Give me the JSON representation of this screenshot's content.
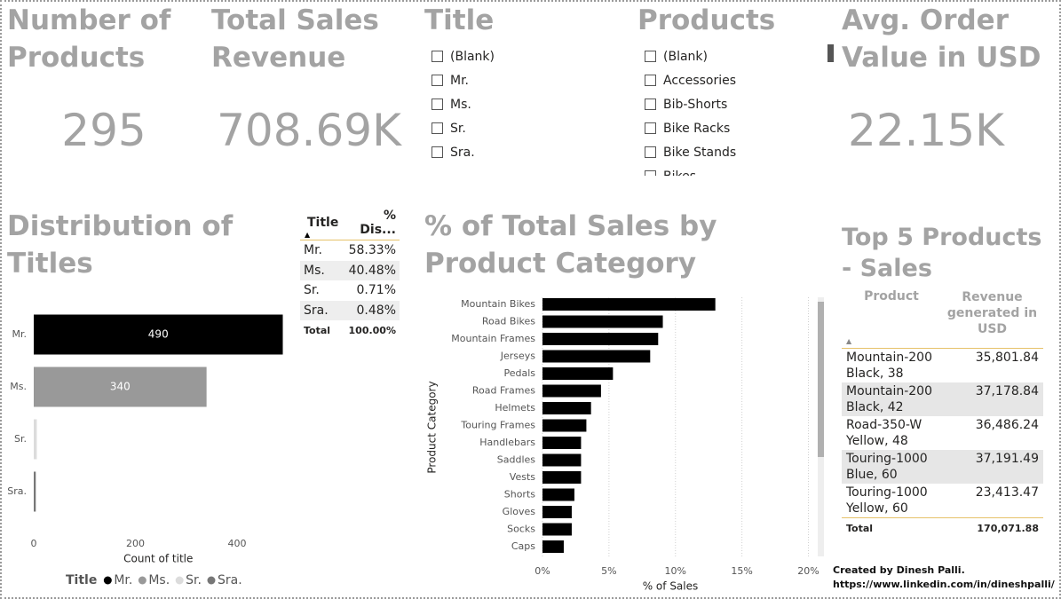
{
  "cards": [
    {
      "title": "Number of Products",
      "value": "295"
    },
    {
      "title": "Total Sales Revenue",
      "value": "708.69K"
    },
    {
      "title": "Avg. Order Value in USD",
      "value": "22.15K"
    }
  ],
  "slicers": [
    {
      "title": "Title",
      "items": [
        "(Blank)",
        "Mr.",
        "Ms.",
        "Sr.",
        "Sra."
      ]
    },
    {
      "title": "Products",
      "items": [
        "(Blank)",
        "Accessories",
        "Bib-Shorts",
        "Bike Racks",
        "Bike Stands",
        "Bikes"
      ]
    }
  ],
  "title_table": {
    "header": [
      "Title",
      "% Dis..."
    ],
    "rows": [
      [
        "Mr.",
        "58.33%"
      ],
      [
        "Ms.",
        "40.48%"
      ],
      [
        "Sr.",
        "0.71%"
      ],
      [
        "Sra.",
        "0.48%"
      ]
    ],
    "total": [
      "Total",
      "100.00%"
    ]
  },
  "top5": {
    "title": "Top 5 Products - Sales",
    "header": [
      "Product",
      "Revenue generated in USD"
    ],
    "rows": [
      [
        "Mountain-200 Black, 38",
        "35,801.84"
      ],
      [
        "Mountain-200 Black, 42",
        "37,178.84"
      ],
      [
        "Road-350-W Yellow, 48",
        "36,486.24"
      ],
      [
        "Touring-1000 Blue, 60",
        "37,191.49"
      ],
      [
        "Touring-1000 Yellow, 60",
        "23,413.47"
      ]
    ],
    "total": [
      "Total",
      "170,071.88"
    ]
  },
  "credit": [
    "Created by Dinesh Palli.",
    "https://www.linkedin.com/in/dineshpalli/"
  ],
  "chart_data": [
    {
      "type": "bar",
      "orientation": "horizontal",
      "title": "Distribution of Titles",
      "categories": [
        "Mr.",
        "Ms.",
        "Sr.",
        "Sra."
      ],
      "values": [
        490,
        340,
        6,
        4
      ],
      "colors": [
        "#000000",
        "#999999",
        "#dcdcdc",
        "#777777"
      ],
      "xlabel": "Count of title",
      "xlim": [
        0,
        490
      ],
      "xticks": [
        0,
        200,
        400
      ],
      "grid": false,
      "legend_title": "Title",
      "legend": "bottom-left"
    },
    {
      "type": "bar",
      "orientation": "horizontal",
      "title": "% of Total Sales by Product Category",
      "categories": [
        "Mountain Bikes",
        "Road Bikes",
        "Mountain Frames",
        "Jerseys",
        "Pedals",
        "Road Frames",
        "Helmets",
        "Touring Frames",
        "Handlebars",
        "Saddles",
        "Vests",
        "Shorts",
        "Gloves",
        "Socks",
        "Caps"
      ],
      "values": [
        13.0,
        9.05,
        8.7,
        8.1,
        5.3,
        4.4,
        3.65,
        3.3,
        2.9,
        2.9,
        2.9,
        2.4,
        2.2,
        2.2,
        1.6
      ],
      "color": "#000000",
      "xlabel": "% of Sales",
      "ylabel": "Product Category",
      "xlim": [
        0,
        20.3
      ],
      "xticks": [
        {
          "value": 0,
          "label": "0%"
        },
        {
          "value": 5,
          "label": "5%"
        },
        {
          "value": 10,
          "label": "10%"
        },
        {
          "value": 15,
          "label": "15%"
        },
        {
          "value": 20,
          "label": "20%"
        }
      ],
      "grid": true
    }
  ]
}
